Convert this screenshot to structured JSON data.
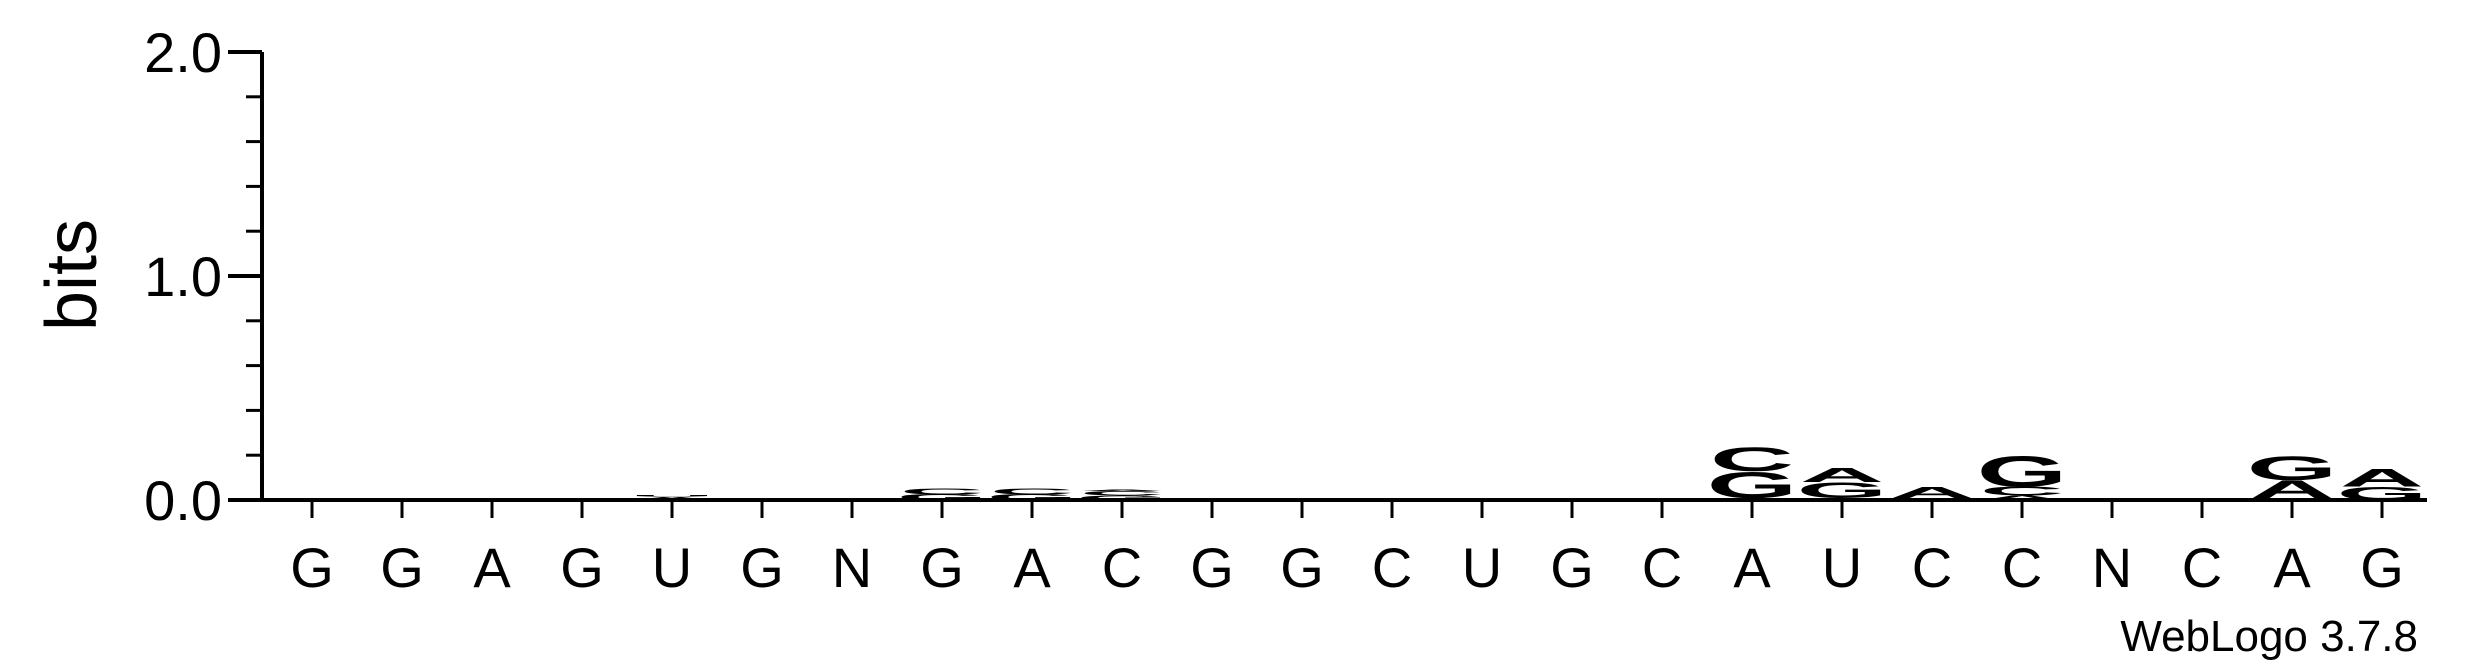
{
  "chart_data": {
    "type": "sequence-logo",
    "ylabel": "bits",
    "ylim": [
      0,
      2.0
    ],
    "yticks": [
      "0.0",
      "1.0",
      "2.0"
    ],
    "ytick_values": [
      0,
      1,
      2
    ],
    "yminor_step": 0.2,
    "positions": [
      "G",
      "G",
      "A",
      "G",
      "U",
      "G",
      "N",
      "G",
      "A",
      "C",
      "G",
      "G",
      "C",
      "U",
      "G",
      "C",
      "A",
      "U",
      "C",
      "C",
      "N",
      "C",
      "A",
      "G"
    ],
    "version_label": "WebLogo 3.7.8",
    "colors": {
      "A": "#ff8c00",
      "C": "#0000ee",
      "G": "#0000ee",
      "U": "#cc0000",
      "N": "#000000"
    },
    "columns": [
      [],
      [],
      [
        {
          "base": "A",
          "bits": 0.01
        }
      ],
      [
        {
          "base": "A",
          "bits": 0.01
        }
      ],
      [
        {
          "base": "A",
          "bits": 0.015
        },
        {
          "base": "U",
          "bits": 0.005
        }
      ],
      [],
      [
        {
          "base": "A",
          "bits": 0.01
        }
      ],
      [
        {
          "base": "G",
          "bits": 0.025
        },
        {
          "base": "C",
          "bits": 0.025
        }
      ],
      [
        {
          "base": "G",
          "bits": 0.025
        },
        {
          "base": "C",
          "bits": 0.025
        }
      ],
      [
        {
          "base": "G",
          "bits": 0.02
        },
        {
          "base": "C",
          "bits": 0.02
        },
        {
          "base": "A",
          "bits": 0.005
        }
      ],
      [],
      [],
      [],
      [],
      [],
      [
        {
          "base": "A",
          "bits": 0.01
        }
      ],
      [
        {
          "base": "A",
          "bits": 0.01
        },
        {
          "base": "G",
          "bits": 0.12
        },
        {
          "base": "C",
          "bits": 0.11
        }
      ],
      [
        {
          "base": "U",
          "bits": 0.01
        },
        {
          "base": "G",
          "bits": 0.07
        },
        {
          "base": "A",
          "bits": 0.065
        }
      ],
      [
        {
          "base": "A",
          "bits": 0.01
        },
        {
          "base": "A",
          "bits": 0.05
        }
      ],
      [
        {
          "base": "A",
          "bits": 0.02
        },
        {
          "base": "C",
          "bits": 0.04
        },
        {
          "base": "G",
          "bits": 0.14
        }
      ],
      [],
      [
        {
          "base": "C",
          "bits": 0.005
        }
      ],
      [
        {
          "base": "C",
          "bits": 0.01
        },
        {
          "base": "A",
          "bits": 0.08
        },
        {
          "base": "G",
          "bits": 0.11
        }
      ],
      [
        {
          "base": "G",
          "bits": 0.06
        },
        {
          "base": "A",
          "bits": 0.08
        }
      ]
    ]
  }
}
